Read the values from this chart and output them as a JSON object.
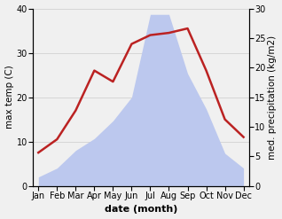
{
  "months": [
    "Jan",
    "Feb",
    "Mar",
    "Apr",
    "May",
    "Jun",
    "Jul",
    "Aug",
    "Sep",
    "Oct",
    "Nov",
    "Dec"
  ],
  "month_positions": [
    0,
    1,
    2,
    3,
    4,
    5,
    6,
    7,
    8,
    9,
    10,
    11
  ],
  "temperature": [
    7.5,
    10.5,
    17,
    26,
    23.5,
    32,
    34,
    34.5,
    35.5,
    26,
    15,
    11
  ],
  "precipitation": [
    1.5,
    3,
    6,
    8,
    11,
    15,
    29,
    29,
    19,
    13,
    5.5,
    3
  ],
  "temp_color": "#bb2222",
  "precip_fill_color": "#bcc8ee",
  "precip_fill_alpha": 1.0,
  "temp_ylim": [
    0,
    40
  ],
  "precip_ylim": [
    0,
    30
  ],
  "temp_yticks": [
    0,
    10,
    20,
    30,
    40
  ],
  "precip_yticks": [
    0,
    5,
    10,
    15,
    20,
    25,
    30
  ],
  "xlabel": "date (month)",
  "ylabel_left": "max temp (C)",
  "ylabel_right": "med. precipitation (kg/m2)",
  "background_color": "#f0f0f0",
  "grid_color": "#cccccc",
  "xlabel_fontsize": 8,
  "ylabel_fontsize": 7.5,
  "tick_fontsize": 7
}
